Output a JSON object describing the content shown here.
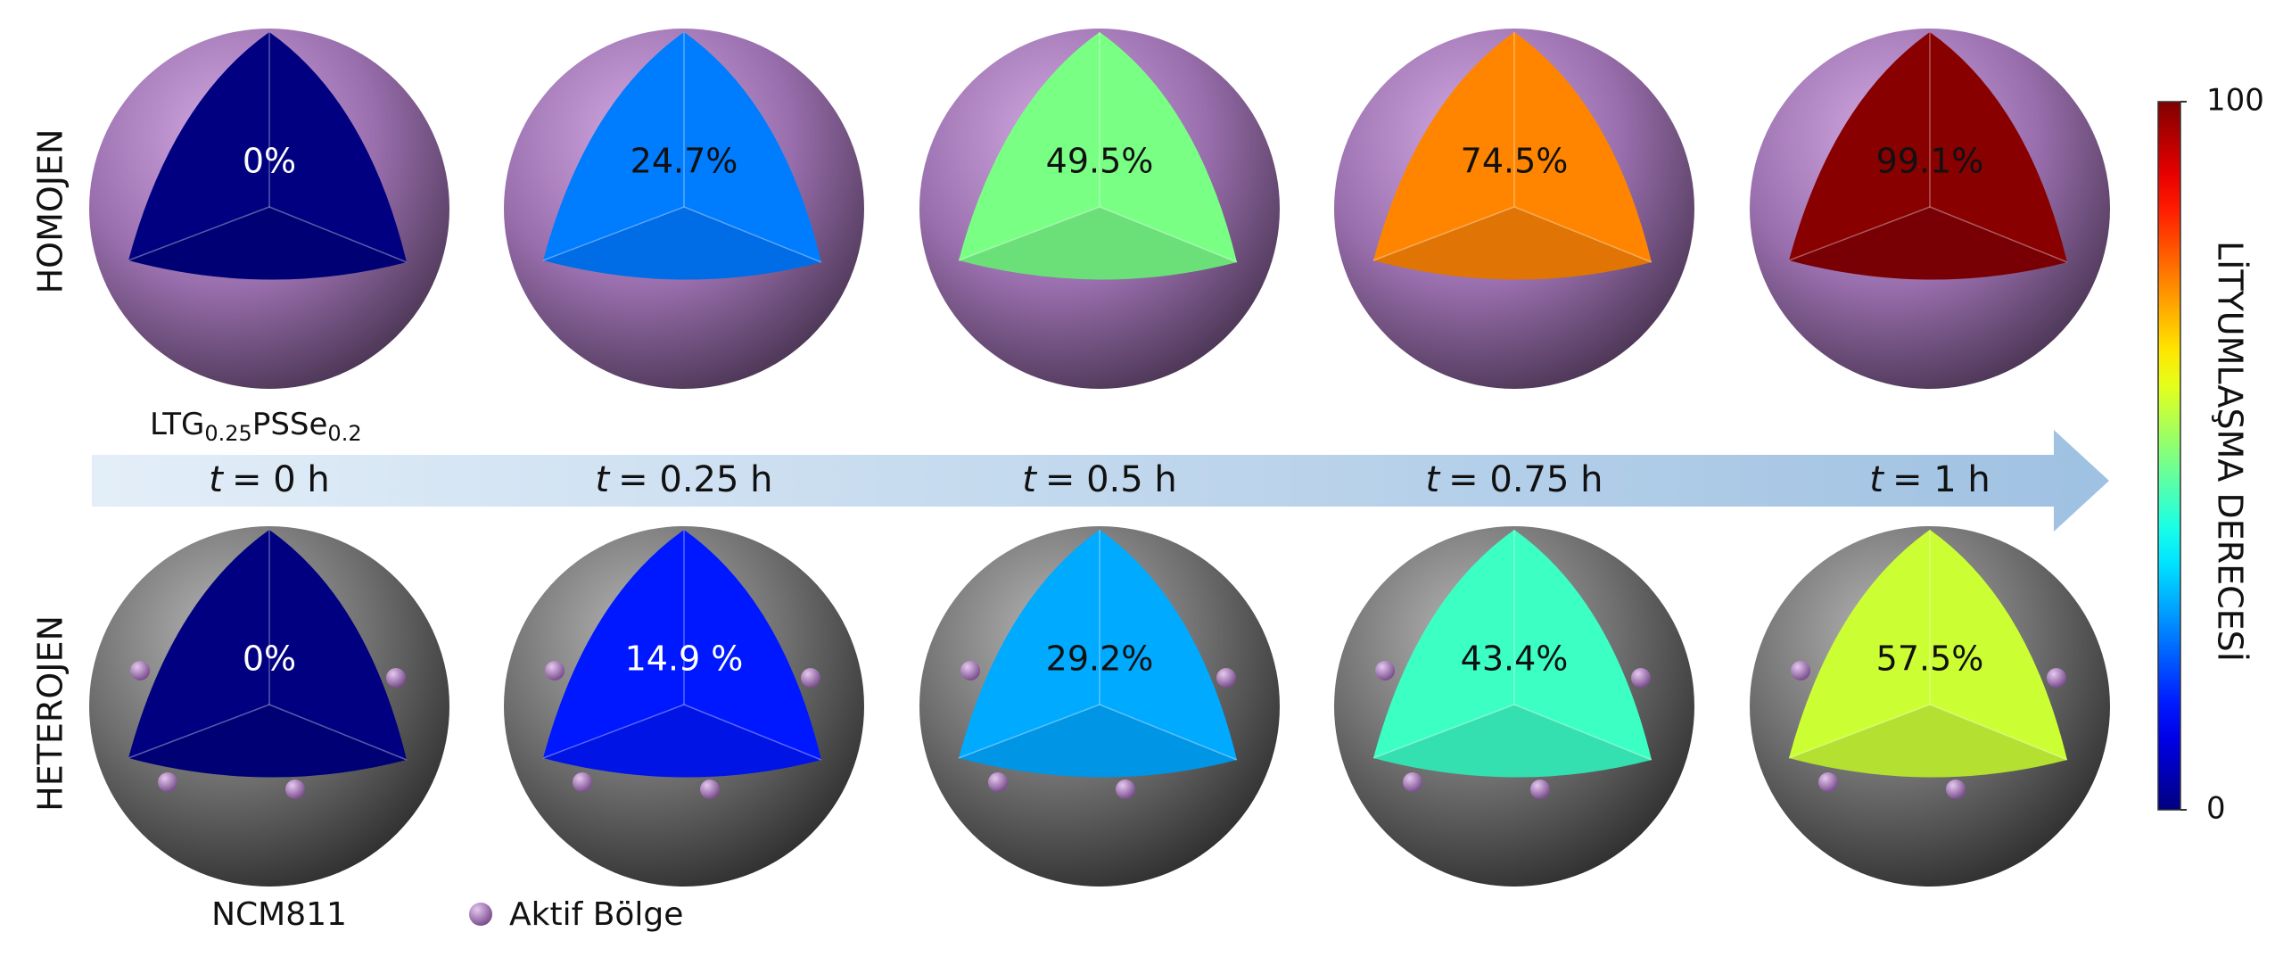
{
  "time_variable": "t",
  "times": [
    "= 0 h",
    "= 0.25 h",
    "= 0.5 h",
    "= 0.75 h",
    "= 1 h"
  ],
  "rows": [
    {
      "label": "HOMOJEN",
      "kind": "homogeneous",
      "values": [
        {
          "value": 0,
          "label": "0%"
        },
        {
          "value": 24.7,
          "label": "24.7%"
        },
        {
          "value": 49.5,
          "label": "49.5%"
        },
        {
          "value": 74.5,
          "label": "74.5%"
        },
        {
          "value": 99.1,
          "label": "99.1%"
        }
      ]
    },
    {
      "label": "HETEROJEN",
      "kind": "heterogeneous",
      "values": [
        {
          "value": 0,
          "label": "0%"
        },
        {
          "value": 14.9,
          "label": "14.9 %"
        },
        {
          "value": 29.2,
          "label": "29.2%"
        },
        {
          "value": 43.4,
          "label": "43.4%"
        },
        {
          "value": 57.5,
          "label": "57.5%"
        }
      ]
    }
  ],
  "material_top": {
    "base": "LTG",
    "sub1": "0.25",
    "mid": "PSSe",
    "sub2": "0.2"
  },
  "material_bottom": "NCM811",
  "legend": "Aktif Bölge",
  "colorbar": {
    "label": "LİTYUMLAŞMA DERECESİ",
    "lim": [
      0,
      100
    ],
    "ticks": [
      0,
      100
    ],
    "colormap": "jet"
  }
}
